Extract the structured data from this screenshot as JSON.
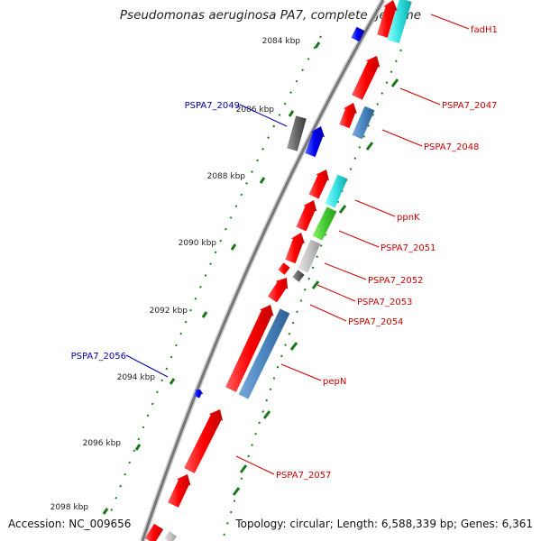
{
  "title": "Pseudomonas aeruginosa PA7, complete genome",
  "accession": "Accession: NC_009656",
  "topology": "Topology: circular; Length: 6,588,339 bp; Genes: 6,361",
  "colors": {
    "backbone": "#8a8a8a",
    "forward_outer": "#1aa6a6",
    "forward_inner": "#ff0000",
    "reverse": "#2233cc",
    "label_red": "#cc0000",
    "label_blue": "#0000aa",
    "tick": "#1a7a1a"
  },
  "ticks": [
    "2084 kbp",
    "2086 kbp",
    "2088 kbp",
    "2090 kbp",
    "2092 kbp",
    "2094 kbp",
    "2096 kbp",
    "2098 kbp"
  ],
  "gene_labels_right": [
    "fadH1",
    "PSPA7_2047",
    "PSPA7_2048",
    "ppnK",
    "PSPA7_2051",
    "PSPA7_2052",
    "PSPA7_2053",
    "PSPA7_2054",
    "pepN",
    "PSPA7_2057"
  ],
  "gene_labels_left": [
    "PSPA7_2049",
    "PSPA7_2056"
  ]
}
